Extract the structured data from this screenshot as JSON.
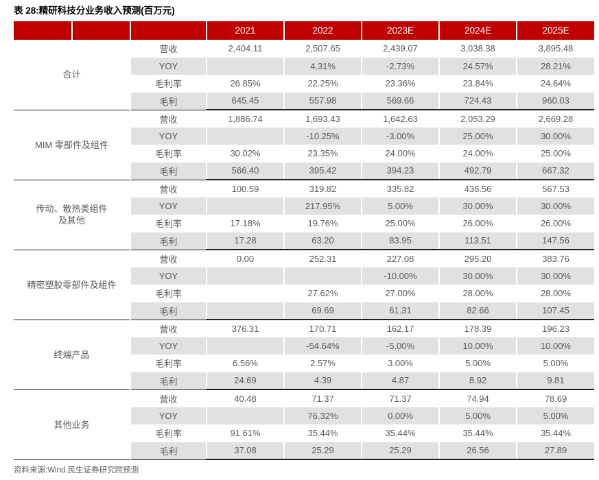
{
  "page": {
    "title": "表 28:精研科技分业务收入预测(百万元)",
    "source_note": "资料来源:Wind,民生证券研究院预测"
  },
  "colors": {
    "header_red": "#C00000",
    "band_gray": "#E1E1E1",
    "text_gray": "#595959"
  },
  "table": {
    "year_headers": [
      "2021",
      "2022",
      "2023E",
      "2024E",
      "2025E"
    ],
    "metric_labels": [
      "营收",
      "YOY",
      "毛利率",
      "毛利"
    ],
    "groups": [
      {
        "name": "合计",
        "rows": [
          {
            "metric": "营收",
            "values": [
              "2,404.11",
              "2,507.65",
              "2,439.07",
              "3,038.38",
              "3,895.48"
            ]
          },
          {
            "metric": "YOY",
            "values": [
              "",
              "4.31%",
              "-2.73%",
              "24.57%",
              "28.21%"
            ]
          },
          {
            "metric": "毛利率",
            "values": [
              "26.85%",
              "22.25%",
              "23.36%",
              "23.84%",
              "24.64%"
            ]
          },
          {
            "metric": "毛利",
            "values": [
              "645.45",
              "557.98",
              "569.66",
              "724.43",
              "960.03"
            ]
          }
        ]
      },
      {
        "name": "MIM 零部件及组件",
        "rows": [
          {
            "metric": "营收",
            "values": [
              "1,886.74",
              "1,693.43",
              "1,642.63",
              "2,053.29",
              "2,669.28"
            ]
          },
          {
            "metric": "YOY",
            "values": [
              "",
              "-10.25%",
              "-3.00%",
              "25.00%",
              "30.00%"
            ]
          },
          {
            "metric": "毛利率",
            "values": [
              "30.02%",
              "23.35%",
              "24.00%",
              "24.00%",
              "25.00%"
            ]
          },
          {
            "metric": "毛利",
            "values": [
              "566.40",
              "395.42",
              "394.23",
              "492.79",
              "667.32"
            ]
          }
        ]
      },
      {
        "name": "传动、散热类组件\n及其他",
        "rows": [
          {
            "metric": "营收",
            "values": [
              "100.59",
              "319.82",
              "335.82",
              "436.56",
              "567.53"
            ]
          },
          {
            "metric": "YOY",
            "values": [
              "",
              "217.95%",
              "5.00%",
              "30.00%",
              "30.00%"
            ]
          },
          {
            "metric": "毛利率",
            "values": [
              "17.18%",
              "19.76%",
              "25.00%",
              "26.00%",
              "26.00%"
            ]
          },
          {
            "metric": "毛利",
            "values": [
              "17.28",
              "63.20",
              "83.95",
              "113.51",
              "147.56"
            ]
          }
        ]
      },
      {
        "name": "精密塑胶零部件及组件",
        "rows": [
          {
            "metric": "营收",
            "values": [
              "0.00",
              "252.31",
              "227.08",
              "295.20",
              "383.76"
            ]
          },
          {
            "metric": "YOY",
            "values": [
              "",
              "",
              "-10.00%",
              "30.00%",
              "30.00%"
            ]
          },
          {
            "metric": "毛利率",
            "values": [
              "",
              "27.62%",
              "27.00%",
              "28.00%",
              "28.00%"
            ]
          },
          {
            "metric": "毛利",
            "values": [
              "",
              "69.69",
              "61.31",
              "82.66",
              "107.45"
            ]
          }
        ]
      },
      {
        "name": "终端产品",
        "rows": [
          {
            "metric": "营收",
            "values": [
              "376.31",
              "170.71",
              "162.17",
              "178.39",
              "196.23"
            ]
          },
          {
            "metric": "YOY",
            "values": [
              "",
              "-54.64%",
              "-5.00%",
              "10.00%",
              "10.00%"
            ]
          },
          {
            "metric": "毛利率",
            "values": [
              "6.56%",
              "2.57%",
              "3.00%",
              "5.00%",
              "5.00%"
            ]
          },
          {
            "metric": "毛利",
            "values": [
              "24.69",
              "4.39",
              "4.87",
              "8.92",
              "9.81"
            ]
          }
        ]
      },
      {
        "name": "其他业务",
        "rows": [
          {
            "metric": "营收",
            "values": [
              "40.48",
              "71.37",
              "71.37",
              "74.94",
              "78.69"
            ]
          },
          {
            "metric": "YOY",
            "values": [
              "",
              "76.32%",
              "0.00%",
              "5.00%",
              "5.00%"
            ]
          },
          {
            "metric": "毛利率",
            "values": [
              "91.61%",
              "35.44%",
              "35.44%",
              "35.44%",
              "35.44%"
            ]
          },
          {
            "metric": "毛利",
            "values": [
              "37.08",
              "25.29",
              "25.29",
              "26.56",
              "27.89"
            ]
          }
        ]
      }
    ]
  }
}
